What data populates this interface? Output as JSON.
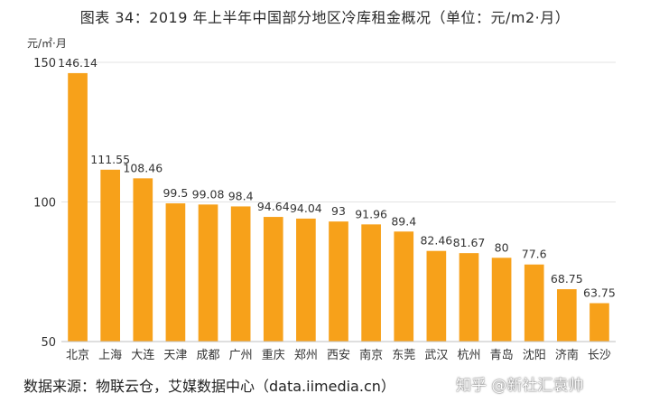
{
  "title": "图表 34：2019 年上半年中国部分地区冷库租金概况（单位：元/m2·月）",
  "source": "数据来源：物联云仓，艾媒数据中心（data.iimedia.cn）",
  "watermark": "知乎 @新社汇袁帅",
  "colors": {
    "bar": "#F7A11A",
    "grid": "#E3E3E3",
    "axis": "#BFBFBF",
    "text": "#333333"
  },
  "chart_data": {
    "type": "bar",
    "title": "图表 34：2019 年上半年中国部分地区冷库租金概况（单位：元/m2·月）",
    "ylabel": "元/㎡·月",
    "xlabel": "",
    "ylim": [
      50,
      150
    ],
    "yticks": [
      50,
      100,
      150
    ],
    "grid": true,
    "categories": [
      "北京",
      "上海",
      "大连",
      "天津",
      "成都",
      "广州",
      "重庆",
      "郑州",
      "西安",
      "南京",
      "东莞",
      "武汉",
      "杭州",
      "青岛",
      "沈阳",
      "济南",
      "长沙"
    ],
    "values": [
      146.14,
      111.55,
      108.46,
      99.5,
      99.08,
      98.4,
      94.64,
      94.04,
      93,
      91.96,
      89.4,
      82.46,
      81.67,
      80,
      77.6,
      68.75,
      63.75
    ],
    "value_labels": [
      "146.14",
      "111.55",
      "108.46",
      "99.5",
      "99.08",
      "98.4",
      "94.64",
      "94.04",
      "93",
      "91.96",
      "89.4",
      "82.46",
      "81.67",
      "80",
      "77.6",
      "68.75",
      "63.75"
    ]
  }
}
